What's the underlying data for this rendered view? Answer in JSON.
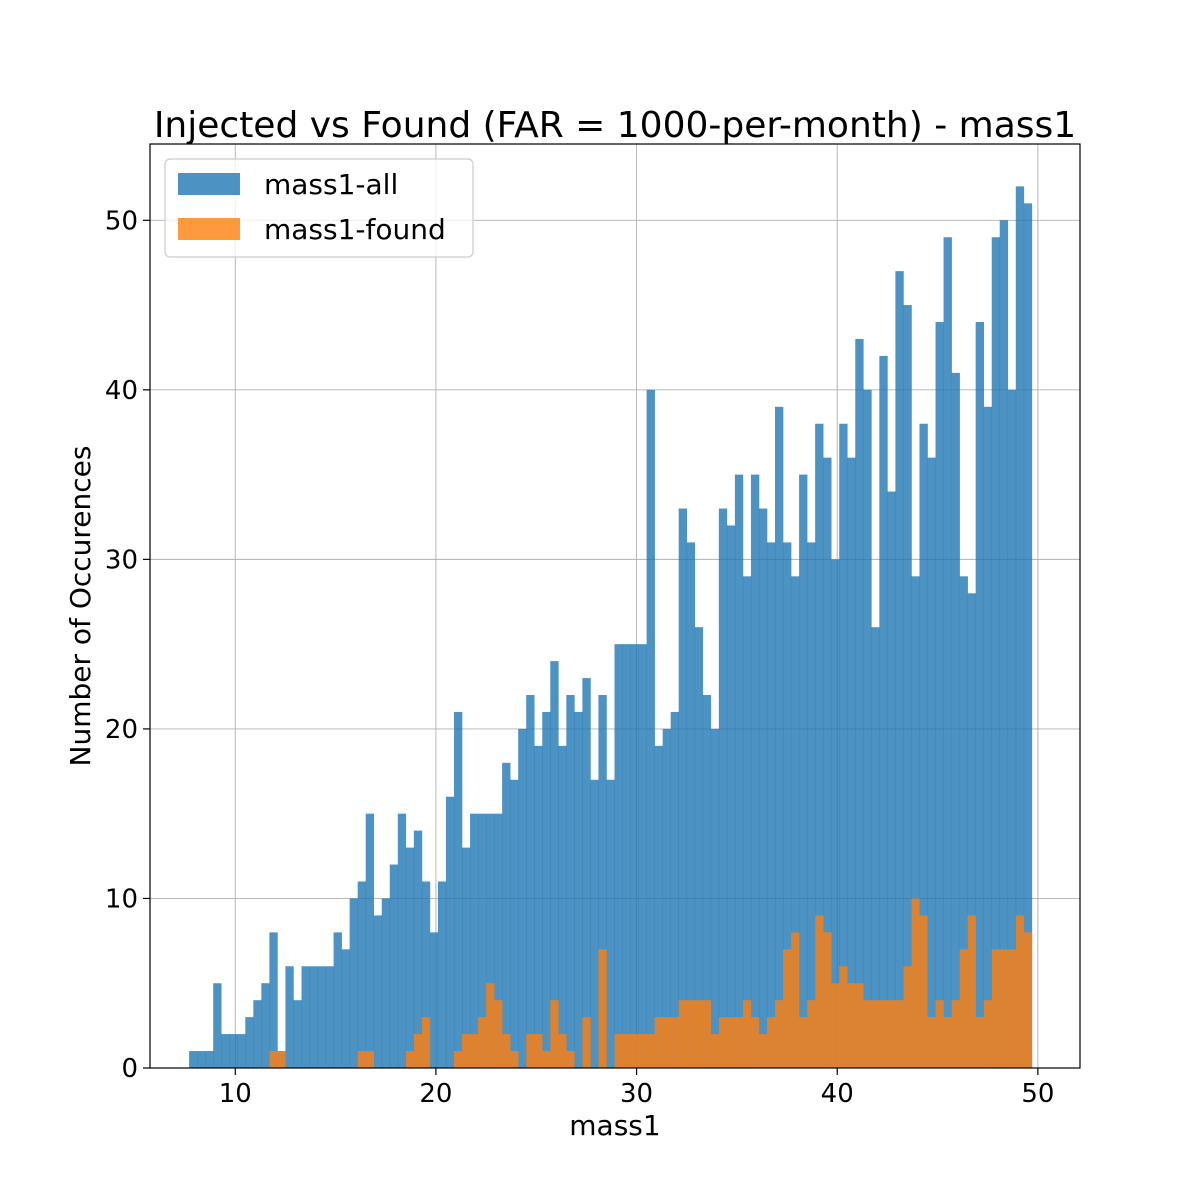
{
  "chart_data": {
    "type": "bar",
    "title": "Injected vs Found (FAR = 1000-per-month) - mass1",
    "xlabel": "mass1",
    "ylabel": "Number of Occurences",
    "xlim": [
      5.75,
      52.1
    ],
    "ylim": [
      0,
      54.5
    ],
    "xticks": [
      10,
      20,
      30,
      40,
      50
    ],
    "yticks": [
      0,
      10,
      20,
      30,
      40,
      50
    ],
    "grid": true,
    "legend_position": "top-left",
    "bin_start": 7.7,
    "bin_width": 0.4,
    "series": [
      {
        "name": "mass1-all",
        "color": "#1f77b4",
        "values": [
          1,
          1,
          1,
          5,
          2,
          2,
          2,
          3,
          4,
          5,
          8,
          1,
          6,
          4,
          6,
          6,
          6,
          6,
          8,
          7,
          10,
          11,
          15,
          9,
          10,
          12,
          15,
          13,
          14,
          11,
          8,
          11,
          16,
          21,
          13,
          15,
          15,
          15,
          15,
          18,
          17,
          20,
          22,
          19,
          21,
          24,
          19,
          22,
          21,
          23,
          17,
          22,
          17,
          25,
          25,
          25,
          25,
          40,
          19,
          20,
          21,
          33,
          31,
          26,
          22,
          20,
          33,
          32,
          35,
          29,
          35,
          33,
          31,
          39,
          31,
          29,
          35,
          31,
          38,
          36,
          30,
          38,
          36,
          43,
          40,
          26,
          42,
          34,
          47,
          45,
          29,
          38,
          36,
          44,
          49,
          41,
          29,
          28,
          44,
          39,
          49,
          50,
          40,
          52,
          51
        ]
      },
      {
        "name": "mass1-found",
        "color": "#ff7f0e",
        "values": [
          0,
          0,
          0,
          0,
          0,
          0,
          0,
          0,
          0,
          0,
          1,
          1,
          0,
          0,
          0,
          0,
          0,
          0,
          0,
          0,
          0,
          1,
          1,
          0,
          0,
          0,
          0,
          1,
          2,
          3,
          0,
          0,
          0,
          1,
          2,
          2,
          3,
          5,
          4,
          2,
          1,
          0,
          2,
          2,
          1,
          4,
          2,
          1,
          0,
          3,
          0,
          7,
          0,
          2,
          2,
          2,
          2,
          2,
          3,
          3,
          3,
          4,
          4,
          4,
          4,
          2,
          3,
          3,
          3,
          4,
          3,
          2,
          3,
          4,
          7,
          8,
          3,
          4,
          9,
          8,
          5,
          6,
          5,
          5,
          4,
          4,
          4,
          4,
          4,
          6,
          10,
          9,
          3,
          4,
          3,
          4,
          7,
          9,
          3,
          4,
          7,
          7,
          7,
          9,
          8
        ]
      }
    ]
  }
}
